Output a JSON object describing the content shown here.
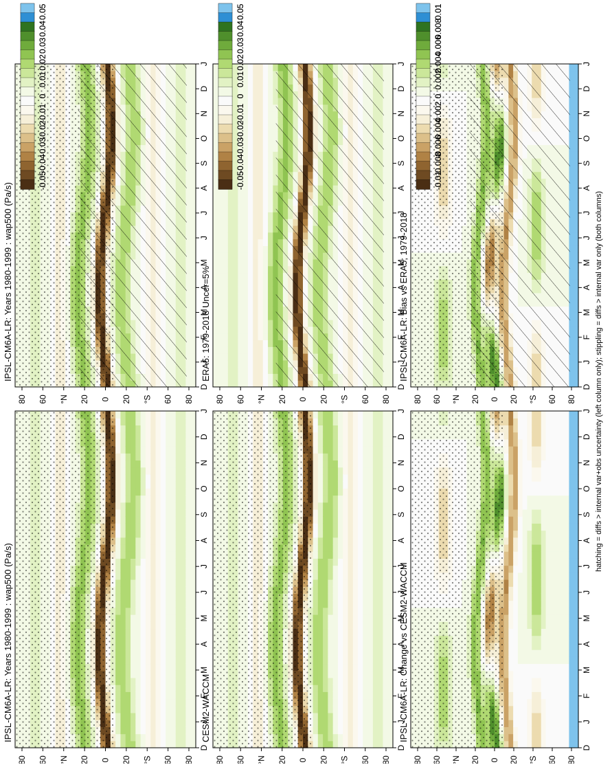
{
  "footnote": "hatching = diffs > internal var+obs uncertainty (left column only); stippling = diffs > internal var only (both columns)",
  "months": [
    "D",
    "J",
    "F",
    "M",
    "A",
    "M",
    "J",
    "J",
    "A",
    "S",
    "O",
    "N",
    "D",
    "J"
  ],
  "lat_labels": [
    "80",
    "60",
    "°N",
    "20",
    "0",
    "20",
    "°S",
    "60",
    "80"
  ],
  "colors": {
    "diverging": [
      "#4a2e14",
      "#6e4a22",
      "#8f6430",
      "#b08245",
      "#caa266",
      "#dcc08a",
      "#ecdbaf",
      "#f6efd8",
      "#fbf8ee",
      "#fafafa",
      "#f3f9e6",
      "#e2f2c4",
      "#cbe79a",
      "#b0d972",
      "#90c452",
      "#6fab3c",
      "#4f8f2c",
      "#2f7320",
      "#2e8fd4",
      "#7ec3ec"
    ]
  },
  "chart_data": [
    {
      "id": "model",
      "type": "heatmap",
      "title": "IPSL-CM6A-LR: Years 1980-1999 : wap500 (Pa/s)",
      "x": "month",
      "y": "latitude",
      "colorbar_ticks": [
        "0.05",
        "0.04",
        "0.03",
        "0.02",
        "0.01",
        "0",
        "-0.01",
        "-0.02",
        "-0.03",
        "-0.04",
        "-0.05"
      ],
      "range": [
        -0.05,
        0.05
      ],
      "hatching": true,
      "stippling": true
    },
    {
      "id": "model2",
      "type": "heatmap",
      "title": "IPSL-CM6A-LR: Years 1980-1999 : wap500 (Pa/s)",
      "x": "month",
      "y": "latitude",
      "colorbar_ticks": [
        "0.05",
        "0.04",
        "0.03",
        "0.02",
        "0.01",
        "0",
        "-0.01",
        "-0.02",
        "-0.03",
        "-0.04",
        "-0.05"
      ],
      "range": [
        -0.05,
        0.05
      ],
      "hatching": false,
      "stippling": true
    },
    {
      "id": "obs",
      "type": "heatmap",
      "title": "ERA5: 1979-2018 Uncer=5%",
      "x": "month",
      "y": "latitude",
      "colorbar_ticks": [
        "0.05",
        "0.04",
        "0.03",
        "0.02",
        "0.01",
        "0",
        "-0.01",
        "-0.02",
        "-0.03",
        "-0.04",
        "-0.05"
      ],
      "range": [
        -0.05,
        0.05
      ],
      "hatching": true,
      "stippling": false
    },
    {
      "id": "ref",
      "type": "heatmap",
      "title": "CESM2-WACCM",
      "x": "month",
      "y": "latitude",
      "colorbar_ticks": [
        "0.05",
        "0.04",
        "0.03",
        "0.02",
        "0.01",
        "0",
        "-0.01",
        "-0.02",
        "-0.03",
        "-0.04",
        "-0.05"
      ],
      "range": [
        -0.05,
        0.05
      ],
      "hatching": false,
      "stippling": true
    },
    {
      "id": "bias",
      "type": "heatmap",
      "title": "IPSL-CM6A-LR: Bias vs ERA5; 1979-2018",
      "x": "month",
      "y": "latitude",
      "colorbar_ticks": [
        "0.01",
        "0.008",
        "0.006",
        "0.004",
        "0.002",
        "0",
        "-0.002",
        "-0.004",
        "-0.006",
        "-0.008",
        "-0.01"
      ],
      "range": [
        -0.01,
        0.01
      ],
      "hatching": true,
      "stippling": true
    },
    {
      "id": "change",
      "type": "heatmap",
      "title": "IPSL-CM6A-LR: Change vs CESM2-WACCM",
      "x": "month",
      "y": "latitude",
      "colorbar_ticks": [
        "0.01",
        "0.008",
        "0.006",
        "0.004",
        "0.002",
        "0",
        "-0.002",
        "-0.004",
        "-0.006",
        "-0.008",
        "-0.01"
      ],
      "range": [
        -0.01,
        0.01
      ],
      "hatching": false,
      "stippling": true
    }
  ]
}
